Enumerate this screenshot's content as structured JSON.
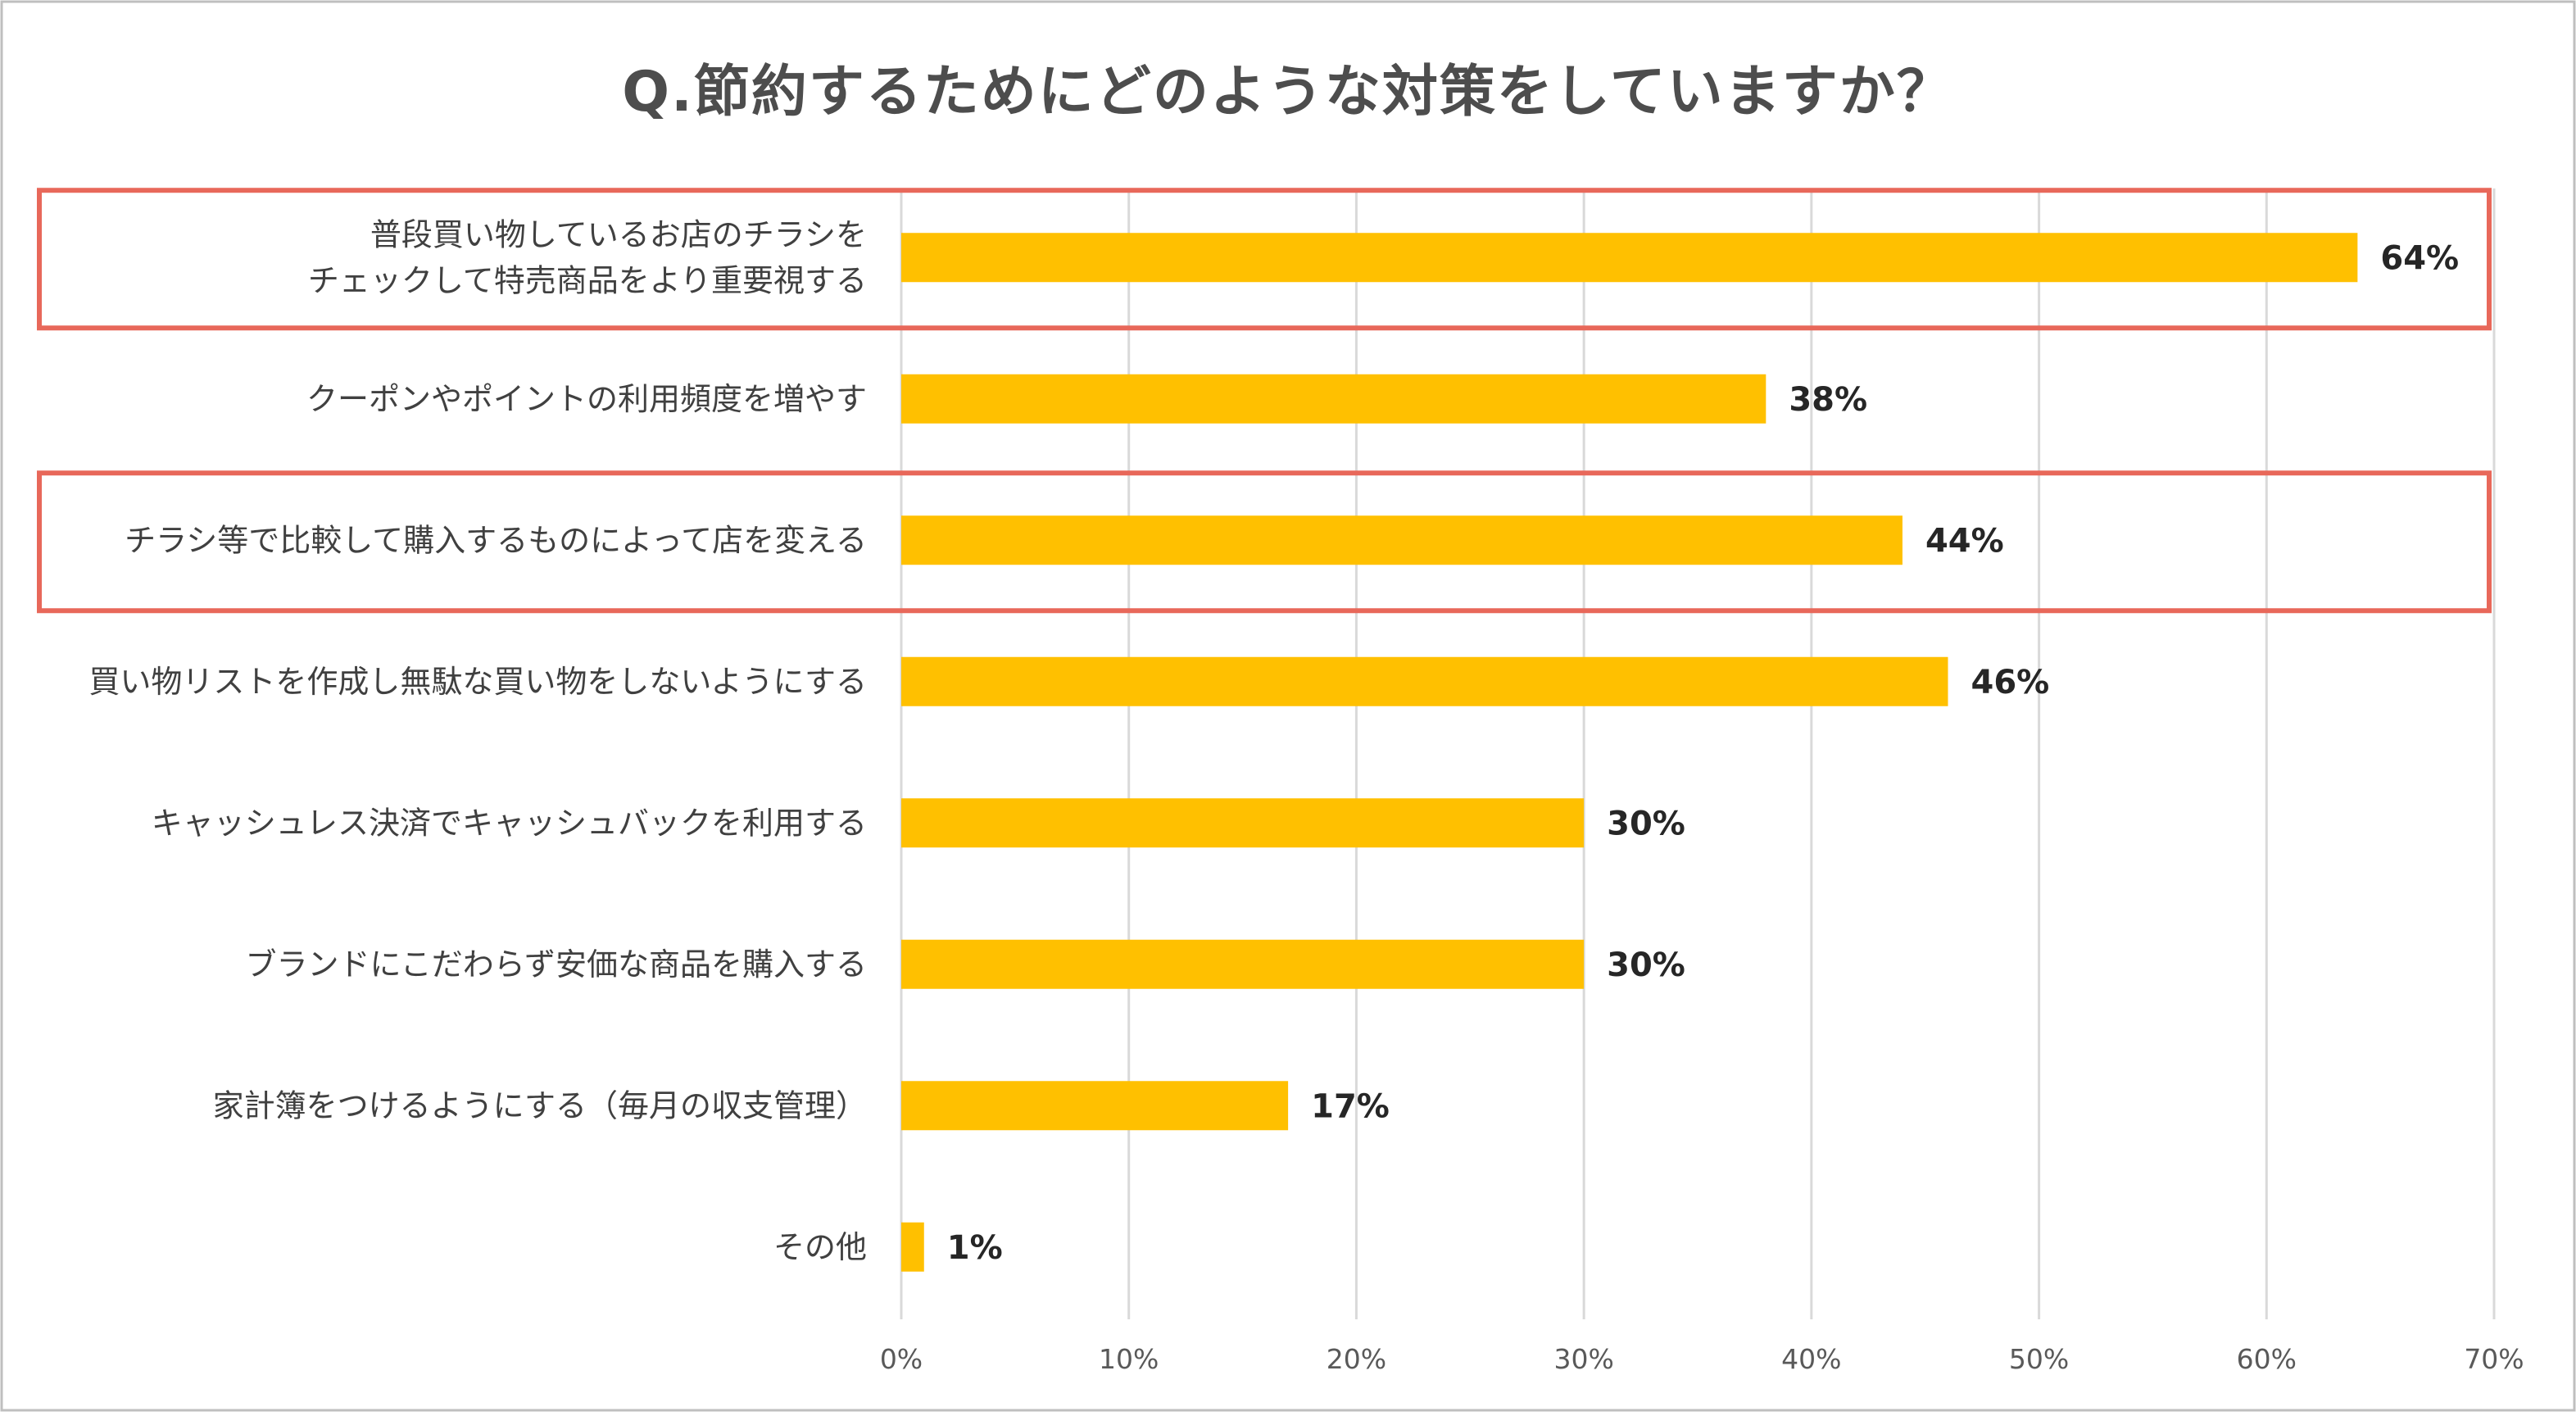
{
  "chart_data": {
    "type": "bar",
    "orientation": "horizontal",
    "title": "Q.節約するためにどのような対策をしていますか？",
    "categories": [
      [
        "普段買い物しているお店のチラシを",
        "チェックして特売商品をより重要視する"
      ],
      [
        "クーポンやポイントの利用頻度を増やす"
      ],
      [
        "チラシ等で比較して購入するものによって店を変える"
      ],
      [
        "買い物リストを作成し無駄な買い物をしないようにする"
      ],
      [
        "キャッシュレス決済でキャッシュバックを利用する"
      ],
      [
        "ブランドにこだわらず安価な商品を購入する"
      ],
      [
        "家計簿をつけるようにする（毎月の収支管理）"
      ],
      [
        "その他"
      ]
    ],
    "values": [
      64,
      38,
      44,
      46,
      30,
      30,
      17,
      1
    ],
    "value_labels": [
      "64%",
      "38%",
      "44%",
      "46%",
      "30%",
      "30%",
      "17%",
      "1%"
    ],
    "highlighted_indices": [
      0,
      2
    ],
    "xlim": [
      0,
      70
    ],
    "xticks": [
      0,
      10,
      20,
      30,
      40,
      50,
      60,
      70
    ],
    "xtick_labels": [
      "0%",
      "10%",
      "20%",
      "30%",
      "40%",
      "50%",
      "60%",
      "70%"
    ],
    "grid": true,
    "legend": "none",
    "xlabel": "",
    "ylabel": ""
  },
  "colors": {
    "bar": "#FFC000",
    "highlight_border": "#E8685A",
    "grid": "#d9d9d9",
    "frame": "#bfbfbf"
  }
}
